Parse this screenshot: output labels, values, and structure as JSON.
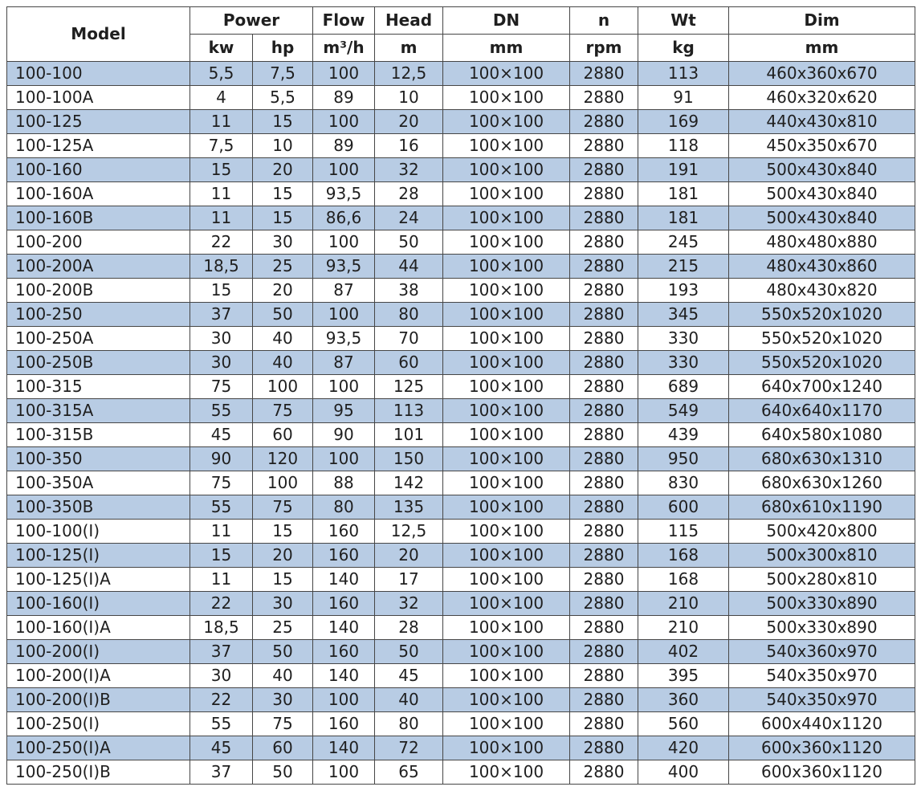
{
  "table": {
    "header": {
      "model": "Model",
      "power": "Power",
      "kw": "kw",
      "hp": "hp",
      "flow": "Flow",
      "flow_unit": "m³/h",
      "head": "Head",
      "head_unit": "m",
      "dn": "DN",
      "dn_unit": "mm",
      "n": "n",
      "n_unit": "rpm",
      "wt": "Wt",
      "wt_unit": "kg",
      "dim": "Dim",
      "dim_unit": "mm"
    },
    "colors": {
      "stripe": "#b8cce4",
      "border": "#464646",
      "text": "#1f1f1f"
    },
    "rows": [
      [
        "100-100",
        "5,5",
        "7,5",
        "100",
        "12,5",
        "100×100",
        "2880",
        "113",
        "460x360x670"
      ],
      [
        "100-100A",
        "4",
        "5,5",
        "89",
        "10",
        "100×100",
        "2880",
        "91",
        "460x320x620"
      ],
      [
        "100-125",
        "11",
        "15",
        "100",
        "20",
        "100×100",
        "2880",
        "169",
        "440x430x810"
      ],
      [
        "100-125A",
        "7,5",
        "10",
        "89",
        "16",
        "100×100",
        "2880",
        "118",
        "450x350x670"
      ],
      [
        "100-160",
        "15",
        "20",
        "100",
        "32",
        "100×100",
        "2880",
        "191",
        "500x430x840"
      ],
      [
        "100-160A",
        "11",
        "15",
        "93,5",
        "28",
        "100×100",
        "2880",
        "181",
        "500x430x840"
      ],
      [
        "100-160B",
        "11",
        "15",
        "86,6",
        "24",
        "100×100",
        "2880",
        "181",
        "500x430x840"
      ],
      [
        "100-200",
        "22",
        "30",
        "100",
        "50",
        "100×100",
        "2880",
        "245",
        "480x480x880"
      ],
      [
        "100-200A",
        "18,5",
        "25",
        "93,5",
        "44",
        "100×100",
        "2880",
        "215",
        "480x430x860"
      ],
      [
        "100-200B",
        "15",
        "20",
        "87",
        "38",
        "100×100",
        "2880",
        "193",
        "480x430x820"
      ],
      [
        "100-250",
        "37",
        "50",
        "100",
        "80",
        "100×100",
        "2880",
        "345",
        "550x520x1020"
      ],
      [
        "100-250A",
        "30",
        "40",
        "93,5",
        "70",
        "100×100",
        "2880",
        "330",
        "550x520x1020"
      ],
      [
        "100-250B",
        "30",
        "40",
        "87",
        "60",
        "100×100",
        "2880",
        "330",
        "550x520x1020"
      ],
      [
        "100-315",
        "75",
        "100",
        "100",
        "125",
        "100×100",
        "2880",
        "689",
        "640x700x1240"
      ],
      [
        "100-315A",
        "55",
        "75",
        "95",
        "113",
        "100×100",
        "2880",
        "549",
        "640x640x1170"
      ],
      [
        "100-315B",
        "45",
        "60",
        "90",
        "101",
        "100×100",
        "2880",
        "439",
        "640x580x1080"
      ],
      [
        "100-350",
        "90",
        "120",
        "100",
        "150",
        "100×100",
        "2880",
        "950",
        "680x630x1310"
      ],
      [
        "100-350A",
        "75",
        "100",
        "88",
        "142",
        "100×100",
        "2880",
        "830",
        "680x630x1260"
      ],
      [
        "100-350B",
        "55",
        "75",
        "80",
        "135",
        "100×100",
        "2880",
        "600",
        "680x610x1190"
      ],
      [
        "100-100(I)",
        "11",
        "15",
        "160",
        "12,5",
        "100×100",
        "2880",
        "115",
        "500x420x800"
      ],
      [
        "100-125(I)",
        "15",
        "20",
        "160",
        "20",
        "100×100",
        "2880",
        "168",
        "500x300x810"
      ],
      [
        "100-125(I)A",
        "11",
        "15",
        "140",
        "17",
        "100×100",
        "2880",
        "168",
        "500x280x810"
      ],
      [
        "100-160(I)",
        "22",
        "30",
        "160",
        "32",
        "100×100",
        "2880",
        "210",
        "500x330x890"
      ],
      [
        "100-160(I)A",
        "18,5",
        "25",
        "140",
        "28",
        "100×100",
        "2880",
        "210",
        "500x330x890"
      ],
      [
        "100-200(I)",
        "37",
        "50",
        "160",
        "50",
        "100×100",
        "2880",
        "402",
        "540x360x970"
      ],
      [
        "100-200(I)A",
        "30",
        "40",
        "140",
        "45",
        "100×100",
        "2880",
        "395",
        "540x350x970"
      ],
      [
        "100-200(I)B",
        "22",
        "30",
        "100",
        "40",
        "100×100",
        "2880",
        "360",
        "540x350x970"
      ],
      [
        "100-250(I)",
        "55",
        "75",
        "160",
        "80",
        "100×100",
        "2880",
        "560",
        "600x440x1120"
      ],
      [
        "100-250(I)A",
        "45",
        "60",
        "140",
        "72",
        "100×100",
        "2880",
        "420",
        "600x360x1120"
      ],
      [
        "100-250(I)B",
        "37",
        "50",
        "100",
        "65",
        "100×100",
        "2880",
        "400",
        "600x360x1120"
      ]
    ]
  }
}
